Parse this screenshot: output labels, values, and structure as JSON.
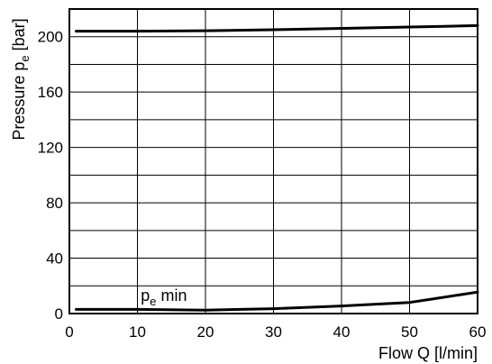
{
  "chart_data": {
    "type": "line",
    "xlabel": "Flow Q [l/min]",
    "ylabel": {
      "main": "Pressure p",
      "subscript": "e",
      "unit": " [bar]"
    },
    "xlim": [
      0,
      60
    ],
    "ylim": [
      0,
      220
    ],
    "xticks": [
      "0",
      "10",
      "20",
      "30",
      "40",
      "50",
      "60"
    ],
    "yticks": [
      "0",
      "40",
      "80",
      "120",
      "160",
      "200"
    ],
    "grid": true,
    "series": [
      {
        "x": [
          1,
          10,
          20,
          30,
          35,
          40,
          45,
          50,
          55,
          60
        ],
        "y": [
          204,
          204,
          204.3,
          205,
          205.5,
          206,
          206.5,
          207,
          207.5,
          208
        ]
      },
      {
        "x": [
          1,
          10,
          20,
          30,
          40,
          46,
          50,
          54,
          60
        ],
        "y": [
          3,
          3,
          2.5,
          3.5,
          5.5,
          7,
          8,
          11,
          15.5
        ]
      }
    ],
    "annotations": [
      {
        "main": "p",
        "subscript": "e",
        "suffix": " min",
        "x": 10.5,
        "y": 9
      }
    ]
  }
}
